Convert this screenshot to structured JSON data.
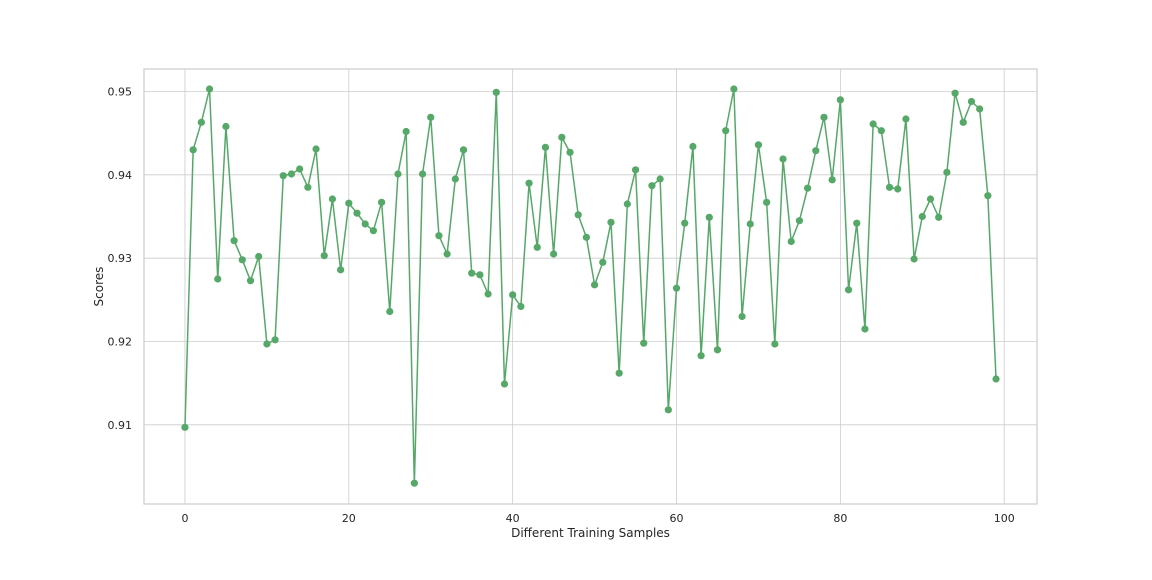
{
  "chart_data": {
    "type": "line",
    "title": "",
    "xlabel": "Different Training Samples",
    "ylabel": "Scores",
    "xlim": [
      -5,
      104
    ],
    "ylim": [
      0.9005,
      0.9527
    ],
    "xticks": [
      0,
      20,
      40,
      60,
      80,
      100
    ],
    "yticks": [
      0.91,
      0.92,
      0.93,
      0.94,
      0.95
    ],
    "xtick_labels": [
      "0",
      "20",
      "40",
      "60",
      "80",
      "100"
    ],
    "ytick_labels": [
      "0.91",
      "0.92",
      "0.93",
      "0.94",
      "0.95"
    ],
    "grid": true,
    "legend": "none",
    "series": [
      {
        "color": "#55a868",
        "marker": "circle",
        "x": [
          0,
          1,
          2,
          3,
          4,
          5,
          6,
          7,
          8,
          9,
          10,
          11,
          12,
          13,
          14,
          15,
          16,
          17,
          18,
          19,
          20,
          21,
          22,
          23,
          24,
          25,
          26,
          27,
          28,
          29,
          30,
          31,
          32,
          33,
          34,
          35,
          36,
          37,
          38,
          39,
          40,
          41,
          42,
          43,
          44,
          45,
          46,
          47,
          48,
          49,
          50,
          51,
          52,
          53,
          54,
          55,
          56,
          57,
          58,
          59,
          60,
          61,
          62,
          63,
          64,
          65,
          66,
          67,
          68,
          69,
          70,
          71,
          72,
          73,
          74,
          75,
          76,
          77,
          78,
          79,
          80,
          81,
          82,
          83,
          84,
          85,
          86,
          87,
          88,
          89,
          90,
          91,
          92,
          93,
          94,
          95,
          96,
          97,
          98,
          99
        ],
        "y": [
          0.9097,
          0.943,
          0.9463,
          0.9503,
          0.9275,
          0.9458,
          0.9321,
          0.9298,
          0.9273,
          0.9302,
          0.9197,
          0.9202,
          0.9399,
          0.9401,
          0.9407,
          0.9385,
          0.9431,
          0.9303,
          0.9371,
          0.9286,
          0.9366,
          0.9354,
          0.9341,
          0.9333,
          0.9367,
          0.9236,
          0.9401,
          0.9452,
          0.903,
          0.9401,
          0.9469,
          0.9327,
          0.9305,
          0.9395,
          0.943,
          0.9282,
          0.928,
          0.9257,
          0.9499,
          0.9149,
          0.9256,
          0.9242,
          0.939,
          0.9313,
          0.9433,
          0.9305,
          0.9445,
          0.9427,
          0.9352,
          0.9325,
          0.9268,
          0.9295,
          0.9343,
          0.9162,
          0.9365,
          0.9406,
          0.9198,
          0.9387,
          0.9395,
          0.9118,
          0.9264,
          0.9342,
          0.9434,
          0.9183,
          0.9349,
          0.919,
          0.9453,
          0.9503,
          0.923,
          0.9341,
          0.9436,
          0.9367,
          0.9197,
          0.9419,
          0.932,
          0.9345,
          0.9384,
          0.9429,
          0.9469,
          0.9394,
          0.949,
          0.9262,
          0.9342,
          0.9215,
          0.9461,
          0.9453,
          0.9385,
          0.9383,
          0.9467,
          0.9299,
          0.935,
          0.9371,
          0.9349,
          0.9403,
          0.9498,
          0.9463,
          0.9488,
          0.9479,
          0.9375,
          0.9155
        ]
      }
    ]
  }
}
